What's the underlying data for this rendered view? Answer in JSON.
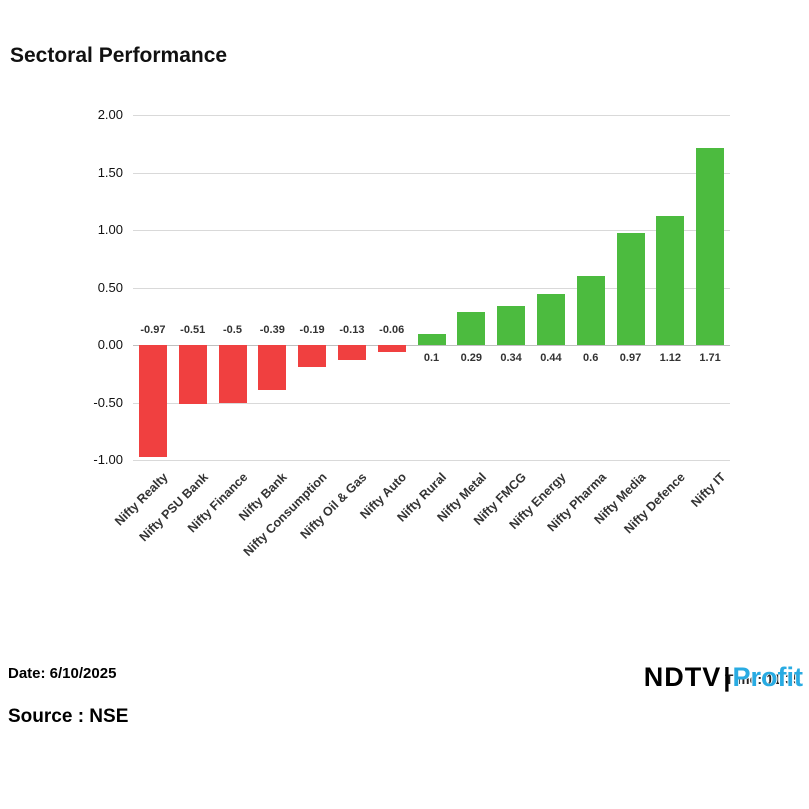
{
  "title": "Sectoral Performance",
  "chart_data": {
    "type": "bar",
    "title": "Sectoral Performance",
    "categories": [
      "Nifty Realty",
      "Nifty PSU Bank",
      "Nifty Finance",
      "Nifty Bank",
      "Nifty Consumption",
      "Nifty Oil & Gas",
      "Nifty Auto",
      "Nifty Rural",
      "Nifty Metal",
      "Nifty FMCG",
      "Nifty Energy",
      "Nifty Pharma",
      "Nifty Media",
      "Nifty Defence",
      "Nifty IT"
    ],
    "values": [
      -0.97,
      -0.51,
      -0.5,
      -0.39,
      -0.19,
      -0.13,
      -0.06,
      0.1,
      0.29,
      0.34,
      0.44,
      0.6,
      0.97,
      1.12,
      1.71
    ],
    "value_labels": [
      "-0.97",
      "-0.51",
      "-0.5",
      "-0.39",
      "-0.19",
      "-0.13",
      "-0.06",
      "0.1",
      "0.29",
      "0.34",
      "0.44",
      "0.6",
      "0.97",
      "1.12",
      "1.71"
    ],
    "ylim": [
      -1.0,
      2.0
    ],
    "ytick_step": 0.5,
    "ytick_labels": [
      "2.00",
      "1.50",
      "1.00",
      "0.50",
      "0.00",
      "-0.50",
      "-1.00"
    ],
    "xlabel": "",
    "ylabel": "",
    "grid": true,
    "legend": "none",
    "positive_color": "#4CBB3F",
    "negative_color": "#F04040"
  },
  "footer": {
    "date": "Date: 6/10/2025",
    "source": "Source : NSE",
    "time": "Time: 11:35",
    "brand": {
      "ndtv": "NDTV",
      "sep": "|",
      "profit": "Profit"
    }
  }
}
